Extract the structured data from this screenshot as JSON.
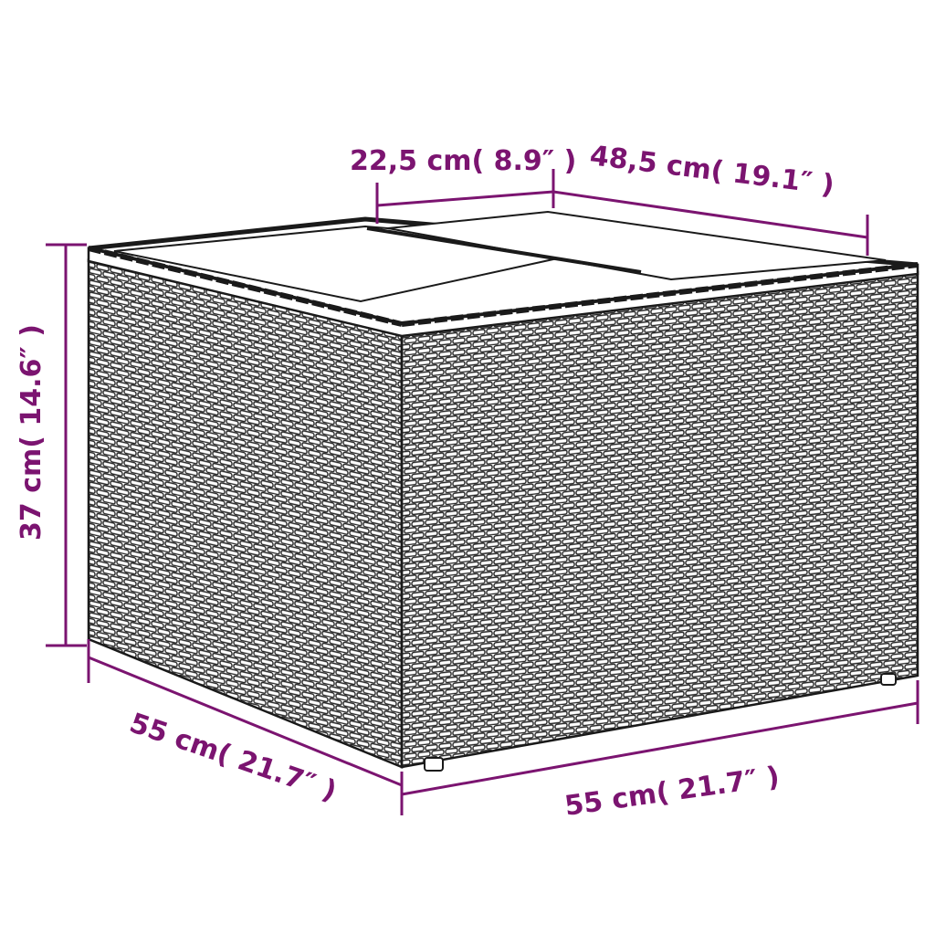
{
  "colors": {
    "dimension": "#7b1470",
    "outline": "#1a1a1a",
    "background": "#ffffff"
  },
  "product": "wicker-storage-box-with-glass-top",
  "dimensions": {
    "top_panel": "22,5 cm( 8.9″  )",
    "top_depth": "48,5 cm( 19.1″  )",
    "height": "37 cm( 14.6″  )",
    "left_width": "55 cm( 21.7″  )",
    "front_width": "55 cm( 21.7″  )"
  }
}
